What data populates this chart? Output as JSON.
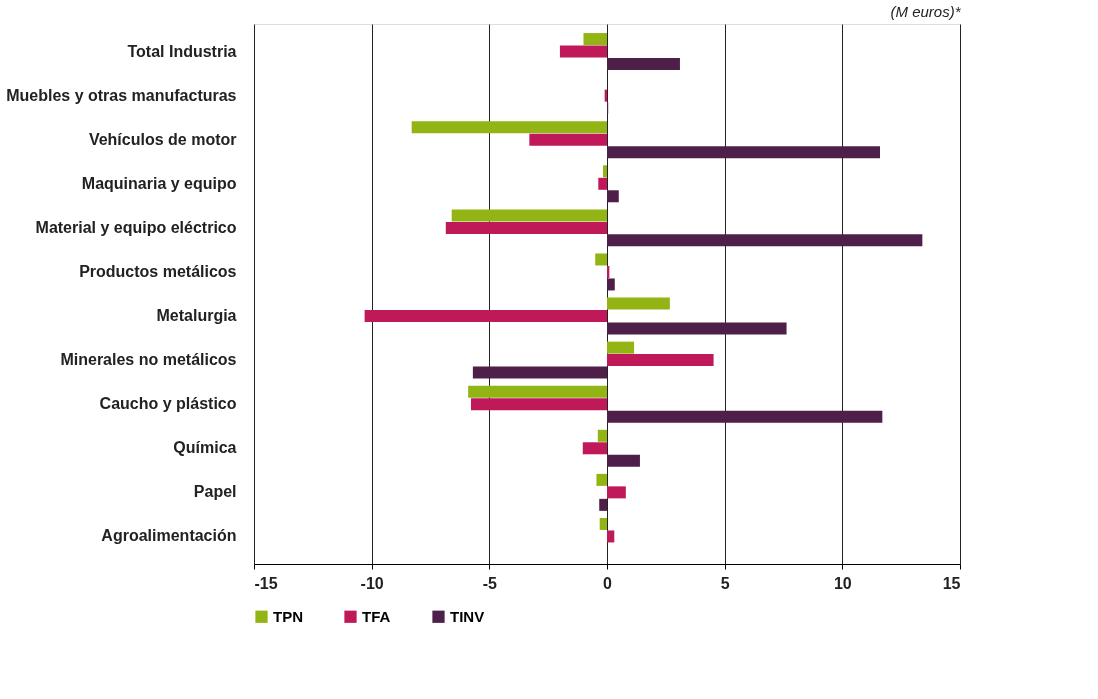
{
  "chart_data": {
    "type": "bar",
    "orientation": "horizontal",
    "categories": [
      "Total Industria",
      "Muebles y otras manufacturas",
      "Vehículos de motor",
      "Maquinaria y equipo",
      "Material y equipo eléctrico",
      "Productos metálicos",
      "Metalurgia ",
      "Minerales no metálicos",
      "Caucho y plástico",
      "Química",
      "Papel",
      "Agroalimentación"
    ],
    "series": [
      {
        "name": "TPN",
        "color": "#92b414",
        "values": [
          -1.0,
          0,
          -8.3,
          -0.17,
          -6.6,
          -0.5,
          2.67,
          1.15,
          -5.9,
          -0.39,
          -0.45,
          -0.31
        ]
      },
      {
        "name": "TFA",
        "color": "#c0195a",
        "values": [
          -2.0,
          -0.1,
          -3.3,
          -0.37,
          -6.85,
          0.1,
          -10.3,
          4.53,
          -5.78,
          -1.03,
          0.8,
          0.31
        ]
      },
      {
        "name": "TINV",
        "color": "#4e1f48",
        "values": [
          3.1,
          0.05,
          11.6,
          0.5,
          13.4,
          0.33,
          7.63,
          -5.7,
          11.7,
          1.4,
          -0.33,
          0
        ]
      }
    ],
    "xlim": [
      -15,
      15
    ],
    "xticks": [
      -15,
      -10,
      -5,
      0,
      5,
      10,
      15
    ],
    "grid": "x",
    "legend": "bottom",
    "annotations": [
      "(M euros)*"
    ]
  }
}
